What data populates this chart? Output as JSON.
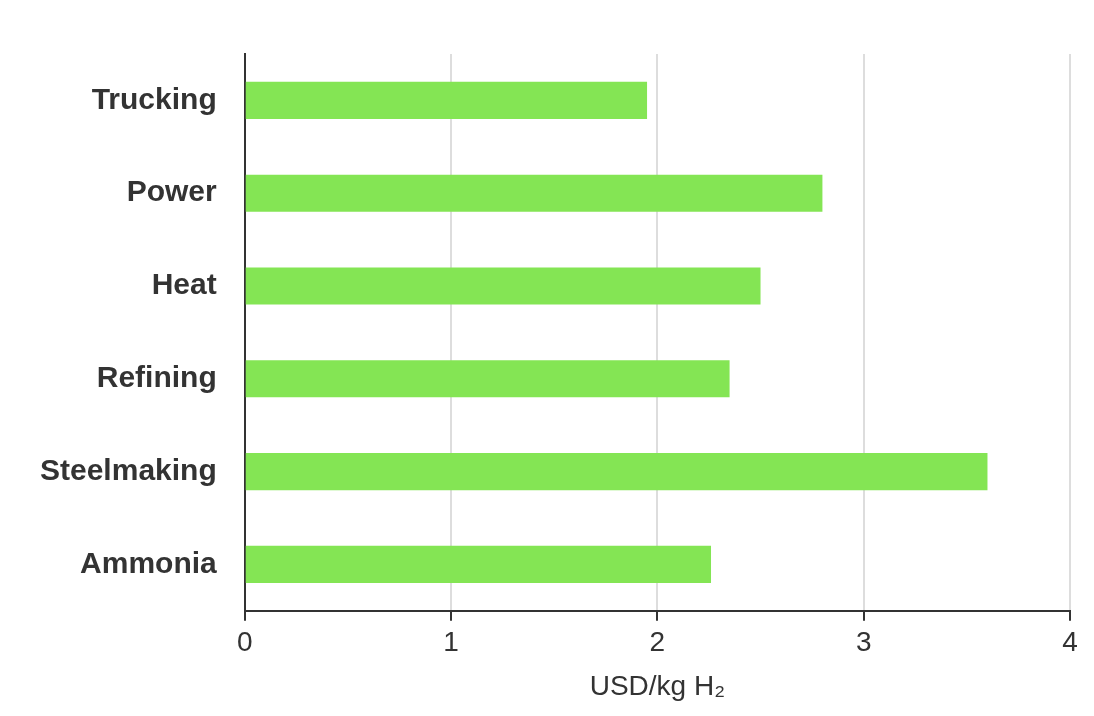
{
  "chart_data": {
    "type": "bar",
    "orientation": "horizontal",
    "xlabel": "USD/kg H₂",
    "categories": [
      "Trucking",
      "Power",
      "Heat",
      "Refining",
      "Steelmaking",
      "Ammonia"
    ],
    "values": [
      1.95,
      2.8,
      2.5,
      2.35,
      3.6,
      2.26
    ],
    "color": "#84e554",
    "xlim": [
      0,
      4
    ],
    "xticks": [
      0,
      1,
      2,
      3,
      4
    ],
    "grid": "x",
    "legend": false
  }
}
